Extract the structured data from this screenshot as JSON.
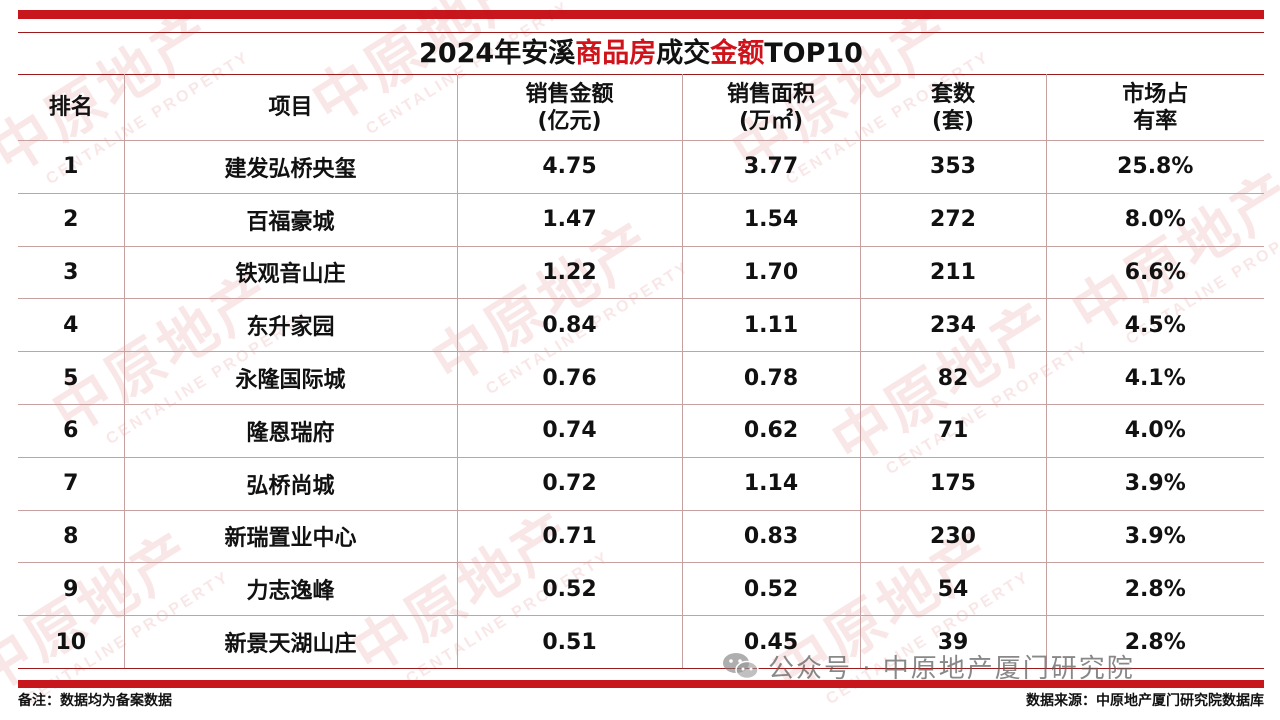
{
  "watermark": {
    "cn": "中原地产",
    "en": "CENTALINE PROPERTY"
  },
  "title": {
    "part1": "2024年安溪",
    "part2": "商品房",
    "part3": "成交",
    "part4": "金额",
    "part5": "TOP10"
  },
  "table": {
    "headers": [
      {
        "line1": "排名",
        "line2": ""
      },
      {
        "line1": "项目",
        "line2": ""
      },
      {
        "line1": "销售金额",
        "line2": "(亿元)"
      },
      {
        "line1": "销售面积",
        "line2": "(万㎡)"
      },
      {
        "line1": "套数",
        "line2": "(套)"
      },
      {
        "line1": "市场占",
        "line2": "有率"
      }
    ],
    "rows": [
      [
        "1",
        "建发弘桥央玺",
        "4.75",
        "3.77",
        "353",
        "25.8%"
      ],
      [
        "2",
        "百福豪城",
        "1.47",
        "1.54",
        "272",
        "8.0%"
      ],
      [
        "3",
        "铁观音山庄",
        "1.22",
        "1.70",
        "211",
        "6.6%"
      ],
      [
        "4",
        "东升家园",
        "0.84",
        "1.11",
        "234",
        "4.5%"
      ],
      [
        "5",
        "永隆国际城",
        "0.76",
        "0.78",
        "82",
        "4.1%"
      ],
      [
        "6",
        "隆恩瑞府",
        "0.74",
        "0.62",
        "71",
        "4.0%"
      ],
      [
        "7",
        "弘桥尚城",
        "0.72",
        "1.14",
        "175",
        "3.9%"
      ],
      [
        "8",
        "新瑞置业中心",
        "0.71",
        "0.83",
        "230",
        "3.9%"
      ],
      [
        "9",
        "力志逸峰",
        "0.52",
        "0.52",
        "54",
        "2.8%"
      ],
      [
        "10",
        "新景天湖山庄",
        "0.51",
        "0.45",
        "39",
        "2.8%"
      ]
    ]
  },
  "footer": {
    "note": "备注：数据均为备案数据",
    "source": "数据来源：中原地产厦门研究院数据库",
    "wechat": "公众号 · 中原地产厦门研究院"
  },
  "colors": {
    "brand_red": "#c8161d",
    "highlight_red": "#d0131b"
  }
}
